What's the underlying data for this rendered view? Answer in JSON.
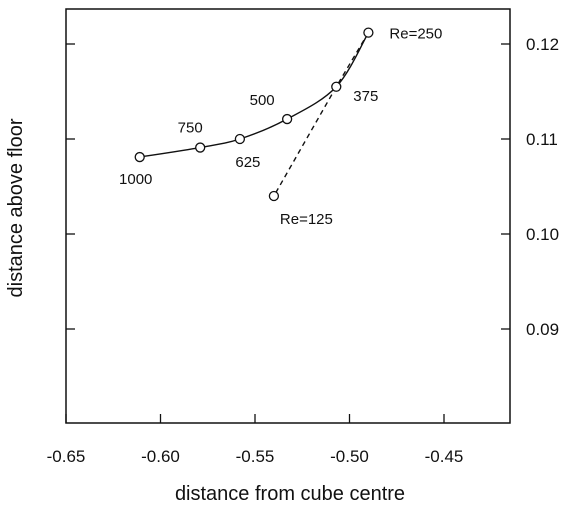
{
  "chart_data": {
    "type": "line",
    "xlabel": "distance from cube centre",
    "ylabel": "distance above floor",
    "xlim": [
      -0.65,
      -0.45
    ],
    "ylim": [
      0.08,
      0.125
    ],
    "xticks": [
      -0.65,
      -0.6,
      -0.55,
      -0.5,
      -0.45
    ],
    "xtick_labels": [
      "-0.65",
      "-0.60",
      "-0.55",
      "-0.50",
      "-0.45"
    ],
    "yticks": [
      0.09,
      0.1,
      0.11,
      0.12
    ],
    "ytick_labels": [
      "0.09",
      "0.10",
      "0.11",
      "0.12"
    ],
    "y_axis_side": "right",
    "grid": false,
    "legend": "none",
    "series": [
      {
        "style": "solid",
        "points": [
          {
            "x": -0.611,
            "y": 0.1081,
            "label": "1000"
          },
          {
            "x": -0.579,
            "y": 0.1091,
            "label": "750"
          },
          {
            "x": -0.558,
            "y": 0.11,
            "label": "625"
          },
          {
            "x": -0.533,
            "y": 0.1121,
            "label": "500"
          },
          {
            "x": -0.507,
            "y": 0.1155,
            "label": "375"
          },
          {
            "x": -0.49,
            "y": 0.1212,
            "label": "Re=250"
          }
        ]
      },
      {
        "style": "dashed",
        "points": [
          {
            "x": -0.49,
            "y": 0.1212
          },
          {
            "x": -0.507,
            "y": 0.1155
          },
          {
            "x": -0.54,
            "y": 0.104,
            "label": "Re=125"
          }
        ]
      }
    ]
  }
}
